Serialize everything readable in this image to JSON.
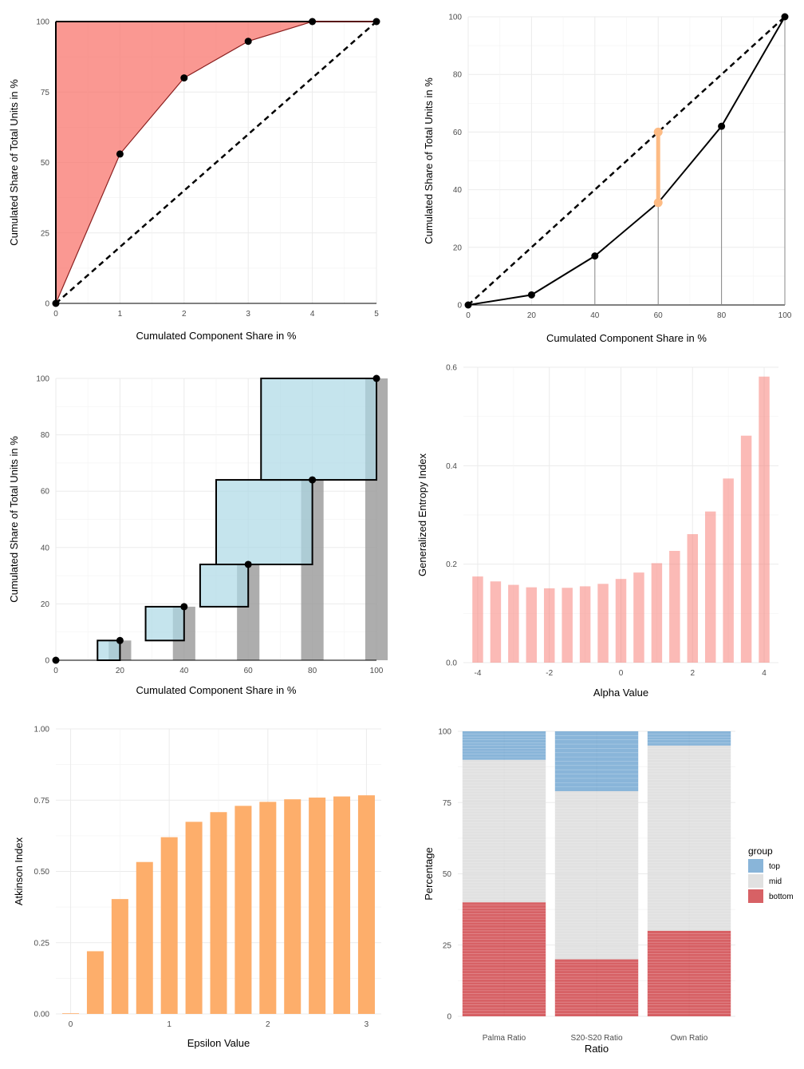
{
  "chart_data": [
    {
      "type": "line",
      "title": "",
      "xlabel": "Cumulated Component Share in %",
      "ylabel": "Cumulated Share of Total Units in %",
      "xlim": [
        0,
        5
      ],
      "ylim": [
        0,
        100
      ],
      "xticks": [
        0,
        1,
        2,
        3,
        4,
        5
      ],
      "yticks": [
        0,
        25,
        50,
        75,
        100
      ],
      "x": [
        0,
        1,
        2,
        3,
        4,
        5
      ],
      "curve": [
        0,
        53,
        80,
        93,
        100,
        100
      ],
      "equality": [
        0,
        20,
        40,
        60,
        80,
        100
      ],
      "fill_color": "#F8766D",
      "fill_opacity": 0.75,
      "grid": true
    },
    {
      "type": "line",
      "title": "",
      "xlabel": "Cumulated Component Share in %",
      "ylabel": "Cumulated Share of Total Units in %",
      "xlim": [
        0,
        100
      ],
      "ylim": [
        0,
        100
      ],
      "xticks": [
        0,
        20,
        40,
        60,
        80,
        100
      ],
      "yticks": [
        0,
        20,
        40,
        60,
        80,
        100
      ],
      "x": [
        0,
        20,
        40,
        60,
        80,
        100
      ],
      "lorenz": [
        0,
        3.5,
        17,
        35.5,
        62,
        100
      ],
      "equality": [
        0,
        20,
        40,
        60,
        80,
        100
      ],
      "drop_lines_at": [
        40,
        60,
        80,
        100
      ],
      "highlight": {
        "x": 60,
        "from": 35.5,
        "to": 60,
        "color": "#FDBB84"
      },
      "grid": true
    },
    {
      "type": "bar",
      "title": "",
      "xlabel": "Cumulated Component Share in %",
      "ylabel": "Cumulated Share of Total Units in %",
      "xlim": [
        0,
        100
      ],
      "ylim": [
        0,
        100
      ],
      "xticks": [
        0,
        20,
        40,
        60,
        80,
        100
      ],
      "yticks": [
        0,
        20,
        40,
        60,
        80,
        100
      ],
      "points": [
        [
          0,
          0
        ],
        [
          20,
          7
        ],
        [
          40,
          19
        ],
        [
          60,
          34
        ],
        [
          80,
          64
        ],
        [
          100,
          100
        ]
      ],
      "bars": [
        {
          "x": 20,
          "y": 7
        },
        {
          "x": 40,
          "y": 19
        },
        {
          "x": 60,
          "y": 34
        },
        {
          "x": 80,
          "y": 64
        },
        {
          "x": 100,
          "y": 100
        }
      ],
      "boxes": [
        {
          "x0": 13,
          "x1": 20,
          "y0": 0,
          "y1": 7
        },
        {
          "x0": 28,
          "x1": 40,
          "y0": 7,
          "y1": 19
        },
        {
          "x0": 45,
          "x1": 60,
          "y0": 19,
          "y1": 34
        },
        {
          "x0": 50,
          "x1": 80,
          "y0": 34,
          "y1": 64
        },
        {
          "x0": 64,
          "x1": 100,
          "y0": 64,
          "y1": 100
        }
      ],
      "bar_color": "#999999",
      "box_color": "#ADD8E6",
      "grid": true
    },
    {
      "type": "bar",
      "title": "",
      "xlabel": "Alpha Value",
      "ylabel": "Generalized Entropy Index",
      "xlim": [
        -4.4,
        4.4
      ],
      "ylim": [
        0,
        0.6
      ],
      "xticks": [
        -4,
        -2,
        0,
        2,
        4
      ],
      "yticks": [
        0.0,
        0.2,
        0.4,
        0.6
      ],
      "ytick_labels": [
        "0.0",
        "0.2",
        "0.4",
        "0.6"
      ],
      "x": [
        -4,
        -3.5,
        -3,
        -2.5,
        -2,
        -1.5,
        -1,
        -0.5,
        0,
        0.5,
        1,
        1.5,
        2,
        2.5,
        3,
        3.5,
        4
      ],
      "values": [
        0.175,
        0.165,
        0.158,
        0.153,
        0.151,
        0.152,
        0.155,
        0.16,
        0.17,
        0.183,
        0.202,
        0.227,
        0.261,
        0.307,
        0.374,
        0.461,
        0.581
      ],
      "bar_color": "#F8766D",
      "bar_opacity": 0.5,
      "grid": true
    },
    {
      "type": "bar",
      "title": "",
      "xlabel": "Epsilon Value",
      "ylabel": "Atkinson Index",
      "xlim": [
        -0.15,
        3.15
      ],
      "ylim": [
        0,
        1
      ],
      "xticks": [
        0,
        1,
        2,
        3
      ],
      "yticks": [
        0,
        0.25,
        0.5,
        0.75,
        1
      ],
      "ytick_labels": [
        "0.00",
        "0.25",
        "0.50",
        "0.75",
        "1.00"
      ],
      "x": [
        0,
        0.25,
        0.5,
        0.75,
        1,
        1.25,
        1.5,
        1.75,
        2,
        2.25,
        2.5,
        2.75,
        3
      ],
      "values": [
        0.0,
        0.22,
        0.403,
        0.533,
        0.62,
        0.674,
        0.708,
        0.73,
        0.744,
        0.753,
        0.759,
        0.763,
        0.767
      ],
      "bar_color": "#FDAE6B",
      "grid": true
    },
    {
      "type": "bar",
      "title": "",
      "xlabel": "Ratio",
      "ylabel": "Percentage",
      "ylim": [
        0,
        100
      ],
      "yticks": [
        0,
        25,
        50,
        75,
        100
      ],
      "categories": [
        "Palma Ratio",
        "S20-S20 Ratio",
        "Own Ratio"
      ],
      "series": [
        {
          "name": "bottom",
          "values": [
            40,
            20,
            30
          ],
          "color": "#CD3A3E"
        },
        {
          "name": "mid",
          "values": [
            50,
            59,
            65
          ],
          "color": "#D9D9D9"
        },
        {
          "name": "top",
          "values": [
            10,
            21,
            5
          ],
          "color": "#6BA3CF"
        }
      ],
      "legend": {
        "title": "group",
        "entries": [
          "top",
          "mid",
          "bottom"
        ],
        "position": "right"
      },
      "grid": true
    }
  ]
}
